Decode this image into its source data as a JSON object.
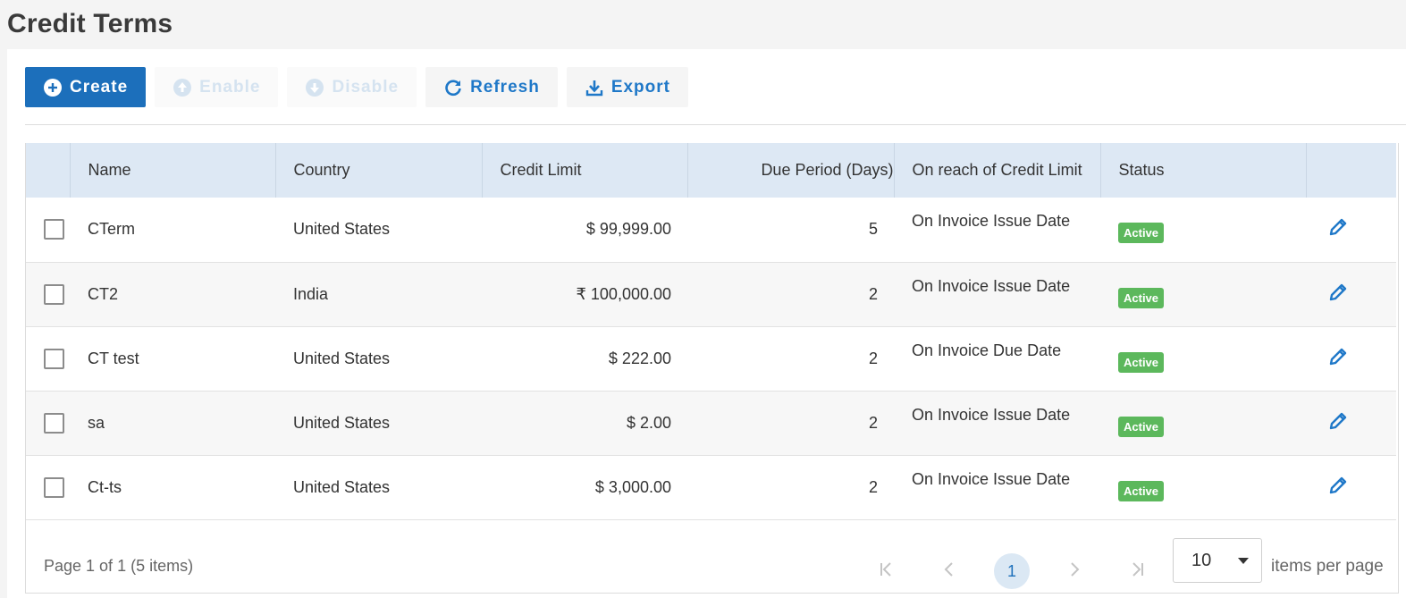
{
  "page": {
    "title": "Credit Terms"
  },
  "toolbar": {
    "create_label": "Create",
    "enable_label": "Enable",
    "disable_label": "Disable",
    "refresh_label": "Refresh",
    "export_label": "Export"
  },
  "table": {
    "columns": [
      "",
      "Name",
      "Country",
      "Credit Limit",
      "Due Period (Days)",
      "On reach of Credit Limit",
      "Status",
      ""
    ],
    "rows": [
      {
        "name": "CTerm",
        "country": "United States",
        "credit_limit": "$ 99,999.00",
        "due_period": "5",
        "on_reach": "On Invoice Issue Date",
        "status": "Active"
      },
      {
        "name": "CT2",
        "country": "India",
        "credit_limit": "₹ 100,000.00",
        "due_period": "2",
        "on_reach": "On Invoice Issue Date",
        "status": "Active"
      },
      {
        "name": "CT test",
        "country": "United States",
        "credit_limit": "$ 222.00",
        "due_period": "2",
        "on_reach": "On Invoice Due Date",
        "status": "Active"
      },
      {
        "name": "sa",
        "country": "United States",
        "credit_limit": "$ 2.00",
        "due_period": "2",
        "on_reach": "On Invoice Issue Date",
        "status": "Active"
      },
      {
        "name": "Ct-ts",
        "country": "United States",
        "credit_limit": "$ 3,000.00",
        "due_period": "2",
        "on_reach": "On Invoice Issue Date",
        "status": "Active"
      }
    ]
  },
  "pager": {
    "info": "Page 1 of 1 (5 items)",
    "current_page": "1",
    "page_size": "10",
    "per_page_label": "items per page"
  },
  "colors": {
    "primary": "#1c6fbb",
    "header_bg": "#dde8f4",
    "status_active": "#5cb85c",
    "edit_icon": "#1f78c8"
  },
  "icons": {
    "create": "plus-circle-icon",
    "enable": "arrow-up-circle-icon",
    "disable": "arrow-down-circle-icon",
    "refresh": "refresh-icon",
    "export": "download-icon",
    "edit": "pencil-icon"
  }
}
